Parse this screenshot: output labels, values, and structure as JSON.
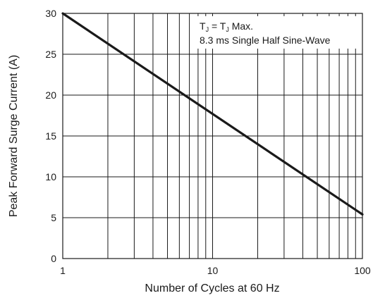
{
  "chart_data": {
    "type": "line",
    "xscale": "log",
    "xlim": [
      1,
      100
    ],
    "ylim": [
      0,
      30
    ],
    "grid": true,
    "xlabel": "Number of Cycles at 60 Hz",
    "ylabel": "Peak Forward Surge Current (A)",
    "x_ticks": [
      1,
      10,
      100
    ],
    "x_tick_labels": [
      "1",
      "10",
      "100"
    ],
    "y_ticks": [
      0,
      5,
      10,
      15,
      20,
      25,
      30
    ],
    "y_tick_labels": [
      "0",
      "5",
      "10",
      "15",
      "20",
      "25",
      "30"
    ],
    "series": [
      {
        "x": [
          1,
          100
        ],
        "y": [
          30,
          5.4
        ],
        "color": "#1a1a1a"
      }
    ],
    "annotation": {
      "line1": {
        "t1": "T",
        "s1": "J",
        "eq": " = T",
        "s2": "J",
        "rest": " Max."
      },
      "line2": "8.3 ms Single Half Sine-Wave"
    }
  }
}
